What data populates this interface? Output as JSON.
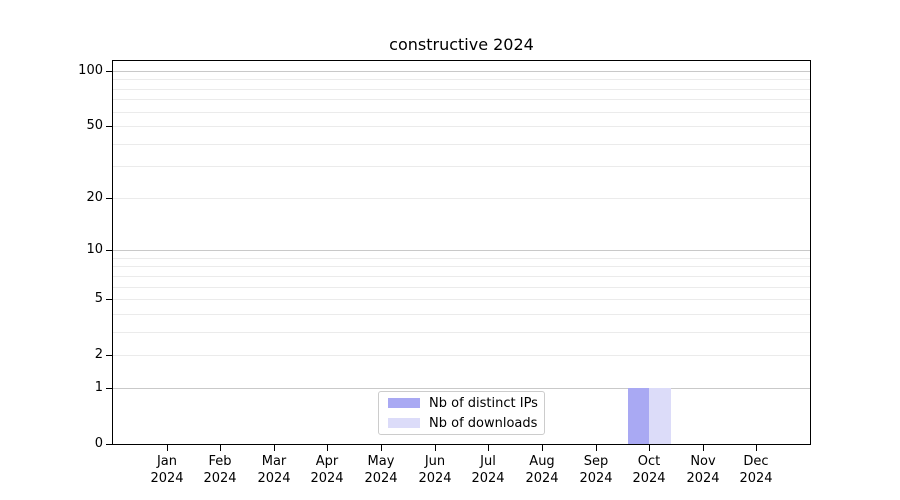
{
  "colors": {
    "background": "#ffffff",
    "axis": "#000000",
    "text": "#000000",
    "major_grid": "#c9c9c9",
    "minor_grid": "#ebebeb",
    "legend_border": "#cccccc"
  },
  "chart_data": {
    "type": "bar",
    "title": "constructive 2024",
    "xlabel": "",
    "ylabel": "",
    "categories": [
      "Jan 2024",
      "Feb 2024",
      "Mar 2024",
      "Apr 2024",
      "May 2024",
      "Jun 2024",
      "Jul 2024",
      "Aug 2024",
      "Sep 2024",
      "Oct 2024",
      "Nov 2024",
      "Dec 2024"
    ],
    "series": [
      {
        "name": "Nb of distinct IPs",
        "color": "#a9a9f3",
        "values": [
          0,
          0,
          0,
          0,
          0,
          0,
          0,
          0,
          0,
          1,
          0,
          0
        ]
      },
      {
        "name": "Nb of downloads",
        "color": "#dcdcf9",
        "values": [
          0,
          0,
          0,
          0,
          0,
          0,
          0,
          0,
          0,
          1,
          0,
          0
        ]
      }
    ],
    "yscale": "log1p",
    "ylim": [
      0,
      120
    ],
    "ytick_values": [
      0,
      1,
      2,
      5,
      10,
      20,
      50,
      100
    ],
    "ytick_labels": [
      "0",
      "1",
      "2",
      "5",
      "10",
      "20",
      "50",
      "100"
    ],
    "major_grid_values": [
      1,
      10,
      100
    ],
    "minor_grid_values": [
      2,
      3,
      4,
      5,
      6,
      7,
      8,
      9,
      20,
      30,
      40,
      50,
      60,
      70,
      80,
      90
    ],
    "grid": true,
    "legend_position": "lower center"
  }
}
